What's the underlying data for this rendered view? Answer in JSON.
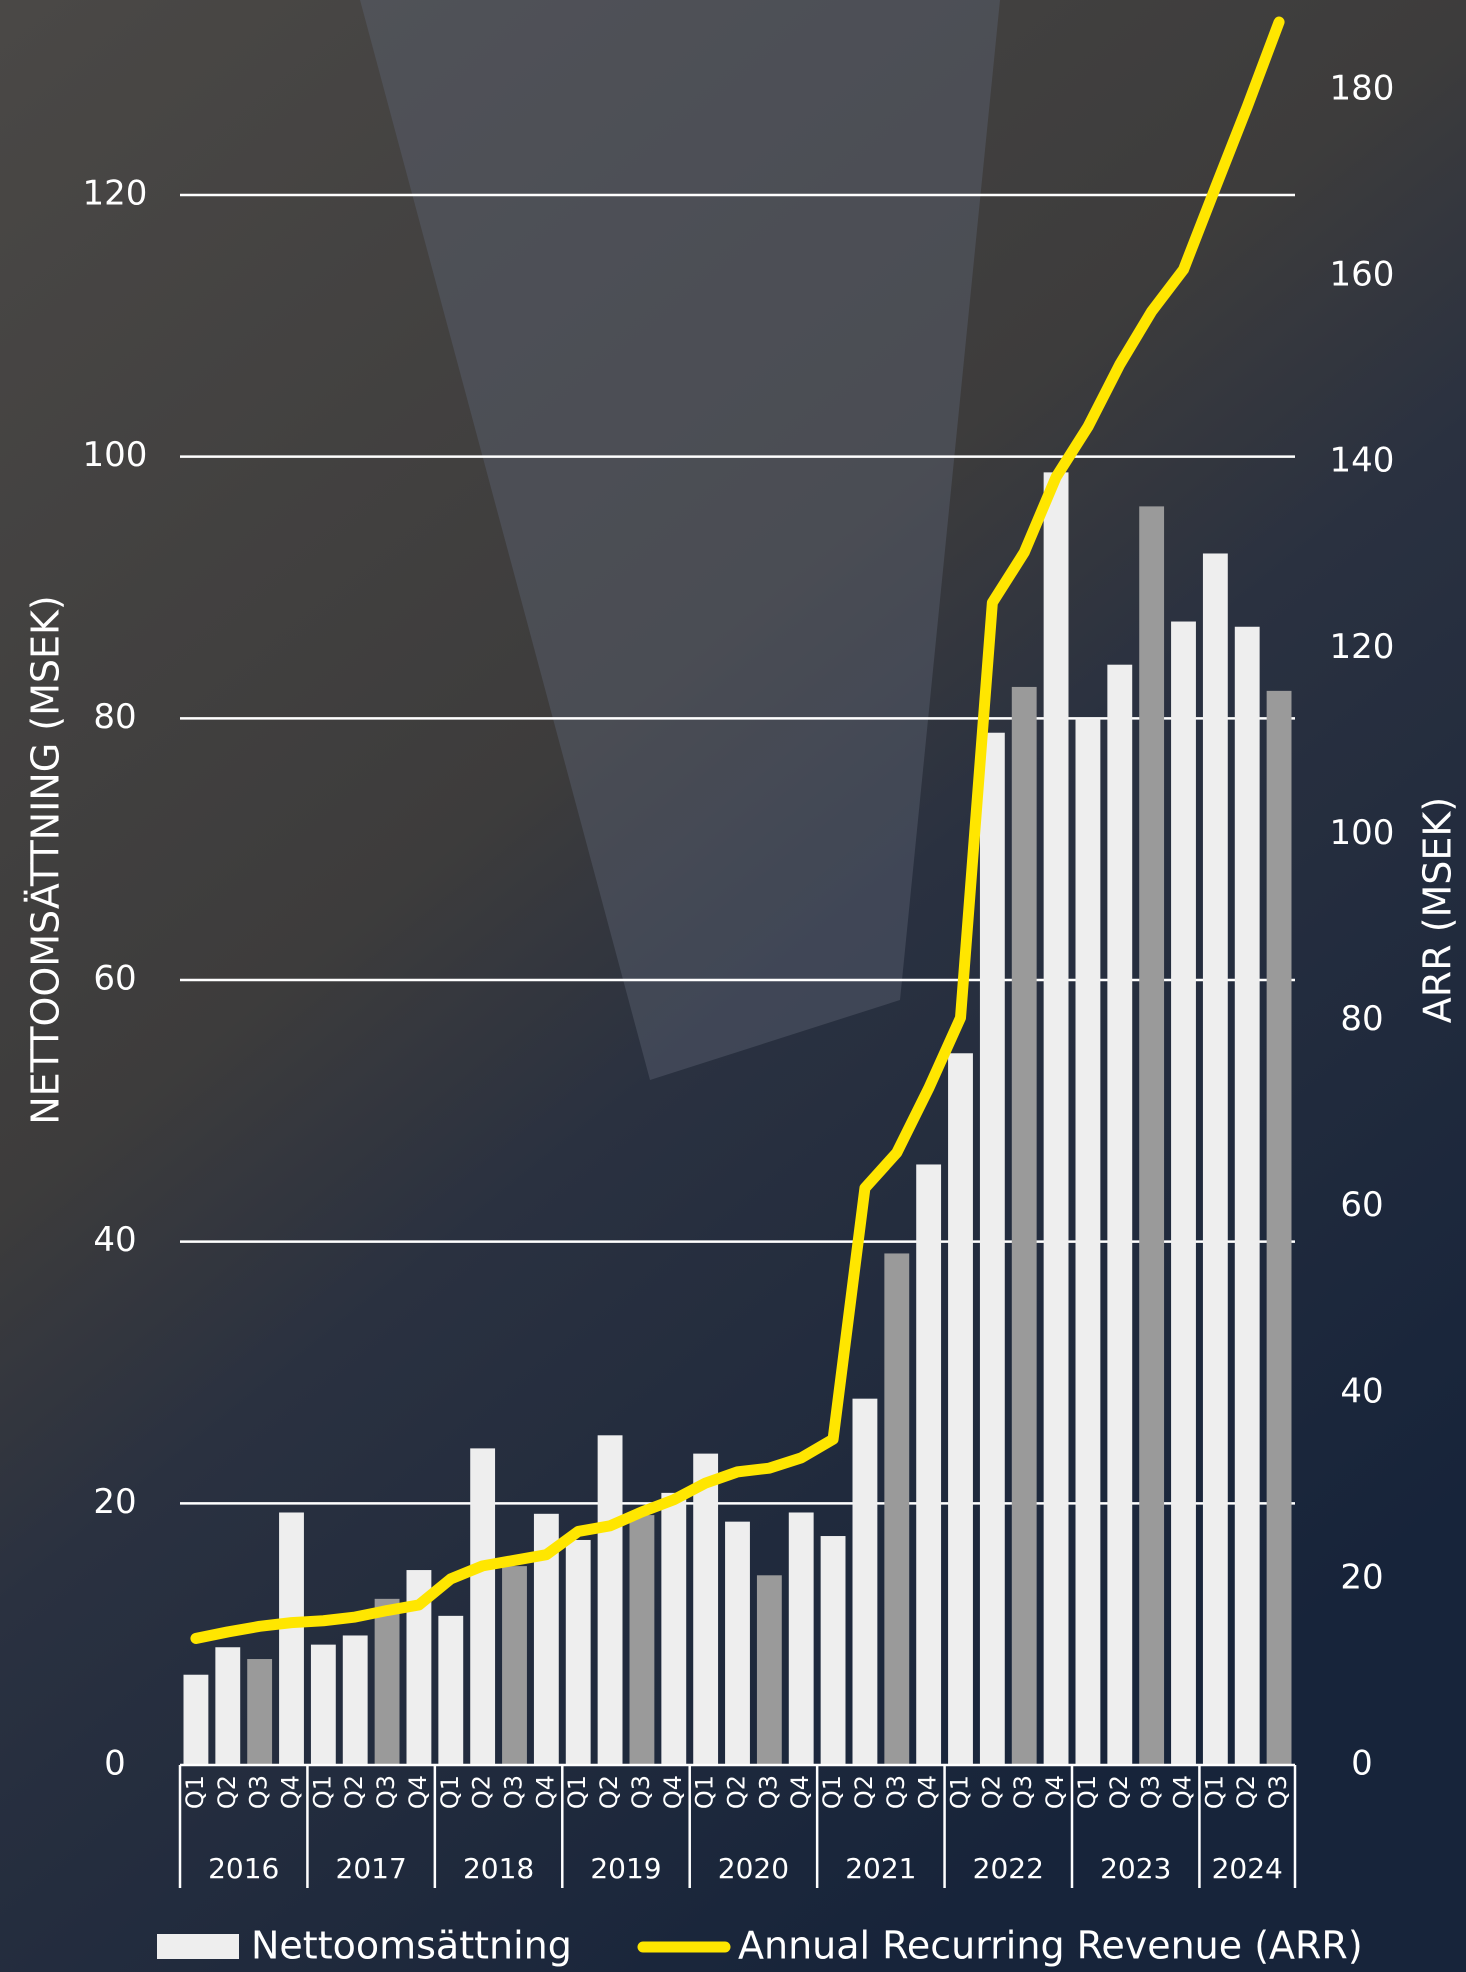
{
  "chart_data": {
    "type": "bar-line",
    "y_label": "NETTOOMSÄTTNING (MSEK)",
    "y2_label": "ARR (MSEK)",
    "groups": [
      {
        "label": "2016",
        "categories": [
          "Q1",
          "Q2",
          "Q3",
          "Q4"
        ]
      },
      {
        "label": "2017",
        "categories": [
          "Q1",
          "Q2",
          "Q3",
          "Q4"
        ]
      },
      {
        "label": "2018",
        "categories": [
          "Q1",
          "Q2",
          "Q3",
          "Q4"
        ]
      },
      {
        "label": "2019",
        "categories": [
          "Q1",
          "Q2",
          "Q3",
          "Q4"
        ]
      },
      {
        "label": "2020",
        "categories": [
          "Q1",
          "Q2",
          "Q3",
          "Q4"
        ]
      },
      {
        "label": "2021",
        "categories": [
          "Q1",
          "Q2",
          "Q3",
          "Q4"
        ]
      },
      {
        "label": "2022",
        "categories": [
          "Q1",
          "Q2",
          "Q3",
          "Q4"
        ]
      },
      {
        "label": "2023",
        "categories": [
          "Q1",
          "Q2",
          "Q3",
          "Q4"
        ]
      },
      {
        "label": "2024",
        "categories": [
          "Q1",
          "Q2",
          "Q3"
        ]
      }
    ],
    "series": [
      {
        "name": "Nettoomsättning",
        "kind": "bar",
        "color": "#eeeeee",
        "q3_color": "#9a9a9a",
        "values": [
          6.9,
          9.0,
          8.1,
          19.3,
          9.2,
          9.9,
          12.7,
          14.9,
          11.4,
          24.2,
          15.2,
          19.2,
          17.2,
          25.2,
          19.1,
          20.8,
          23.8,
          18.6,
          14.5,
          19.3,
          17.5,
          28.0,
          39.1,
          45.9,
          54.4,
          78.9,
          82.4,
          98.8,
          80.0,
          84.1,
          96.2,
          87.4,
          92.6,
          87.0,
          82.1
        ]
      },
      {
        "name": "Annual Recurring Revenue (ARR)",
        "kind": "line",
        "axis": "y2",
        "color": "#ffe600",
        "values": [
          13.6,
          14.3,
          14.9,
          15.3,
          15.5,
          15.9,
          16.6,
          17.2,
          20.0,
          21.4,
          22.0,
          22.6,
          25.1,
          25.7,
          27.2,
          28.5,
          30.3,
          31.5,
          31.9,
          33.0,
          35.0,
          62.0,
          65.8,
          72.7,
          80.3,
          124.9,
          130.3,
          138.4,
          143.8,
          150.5,
          156.2,
          160.7,
          169.5,
          178.2,
          187.3
        ]
      }
    ],
    "ylim": [
      0,
      120
    ],
    "yticks": [
      0,
      20,
      40,
      60,
      80,
      100,
      120
    ],
    "y2lim": [
      0,
      180
    ],
    "y2ticks": [
      0,
      20,
      40,
      60,
      80,
      100,
      120,
      140,
      160,
      180
    ],
    "grid": true
  }
}
